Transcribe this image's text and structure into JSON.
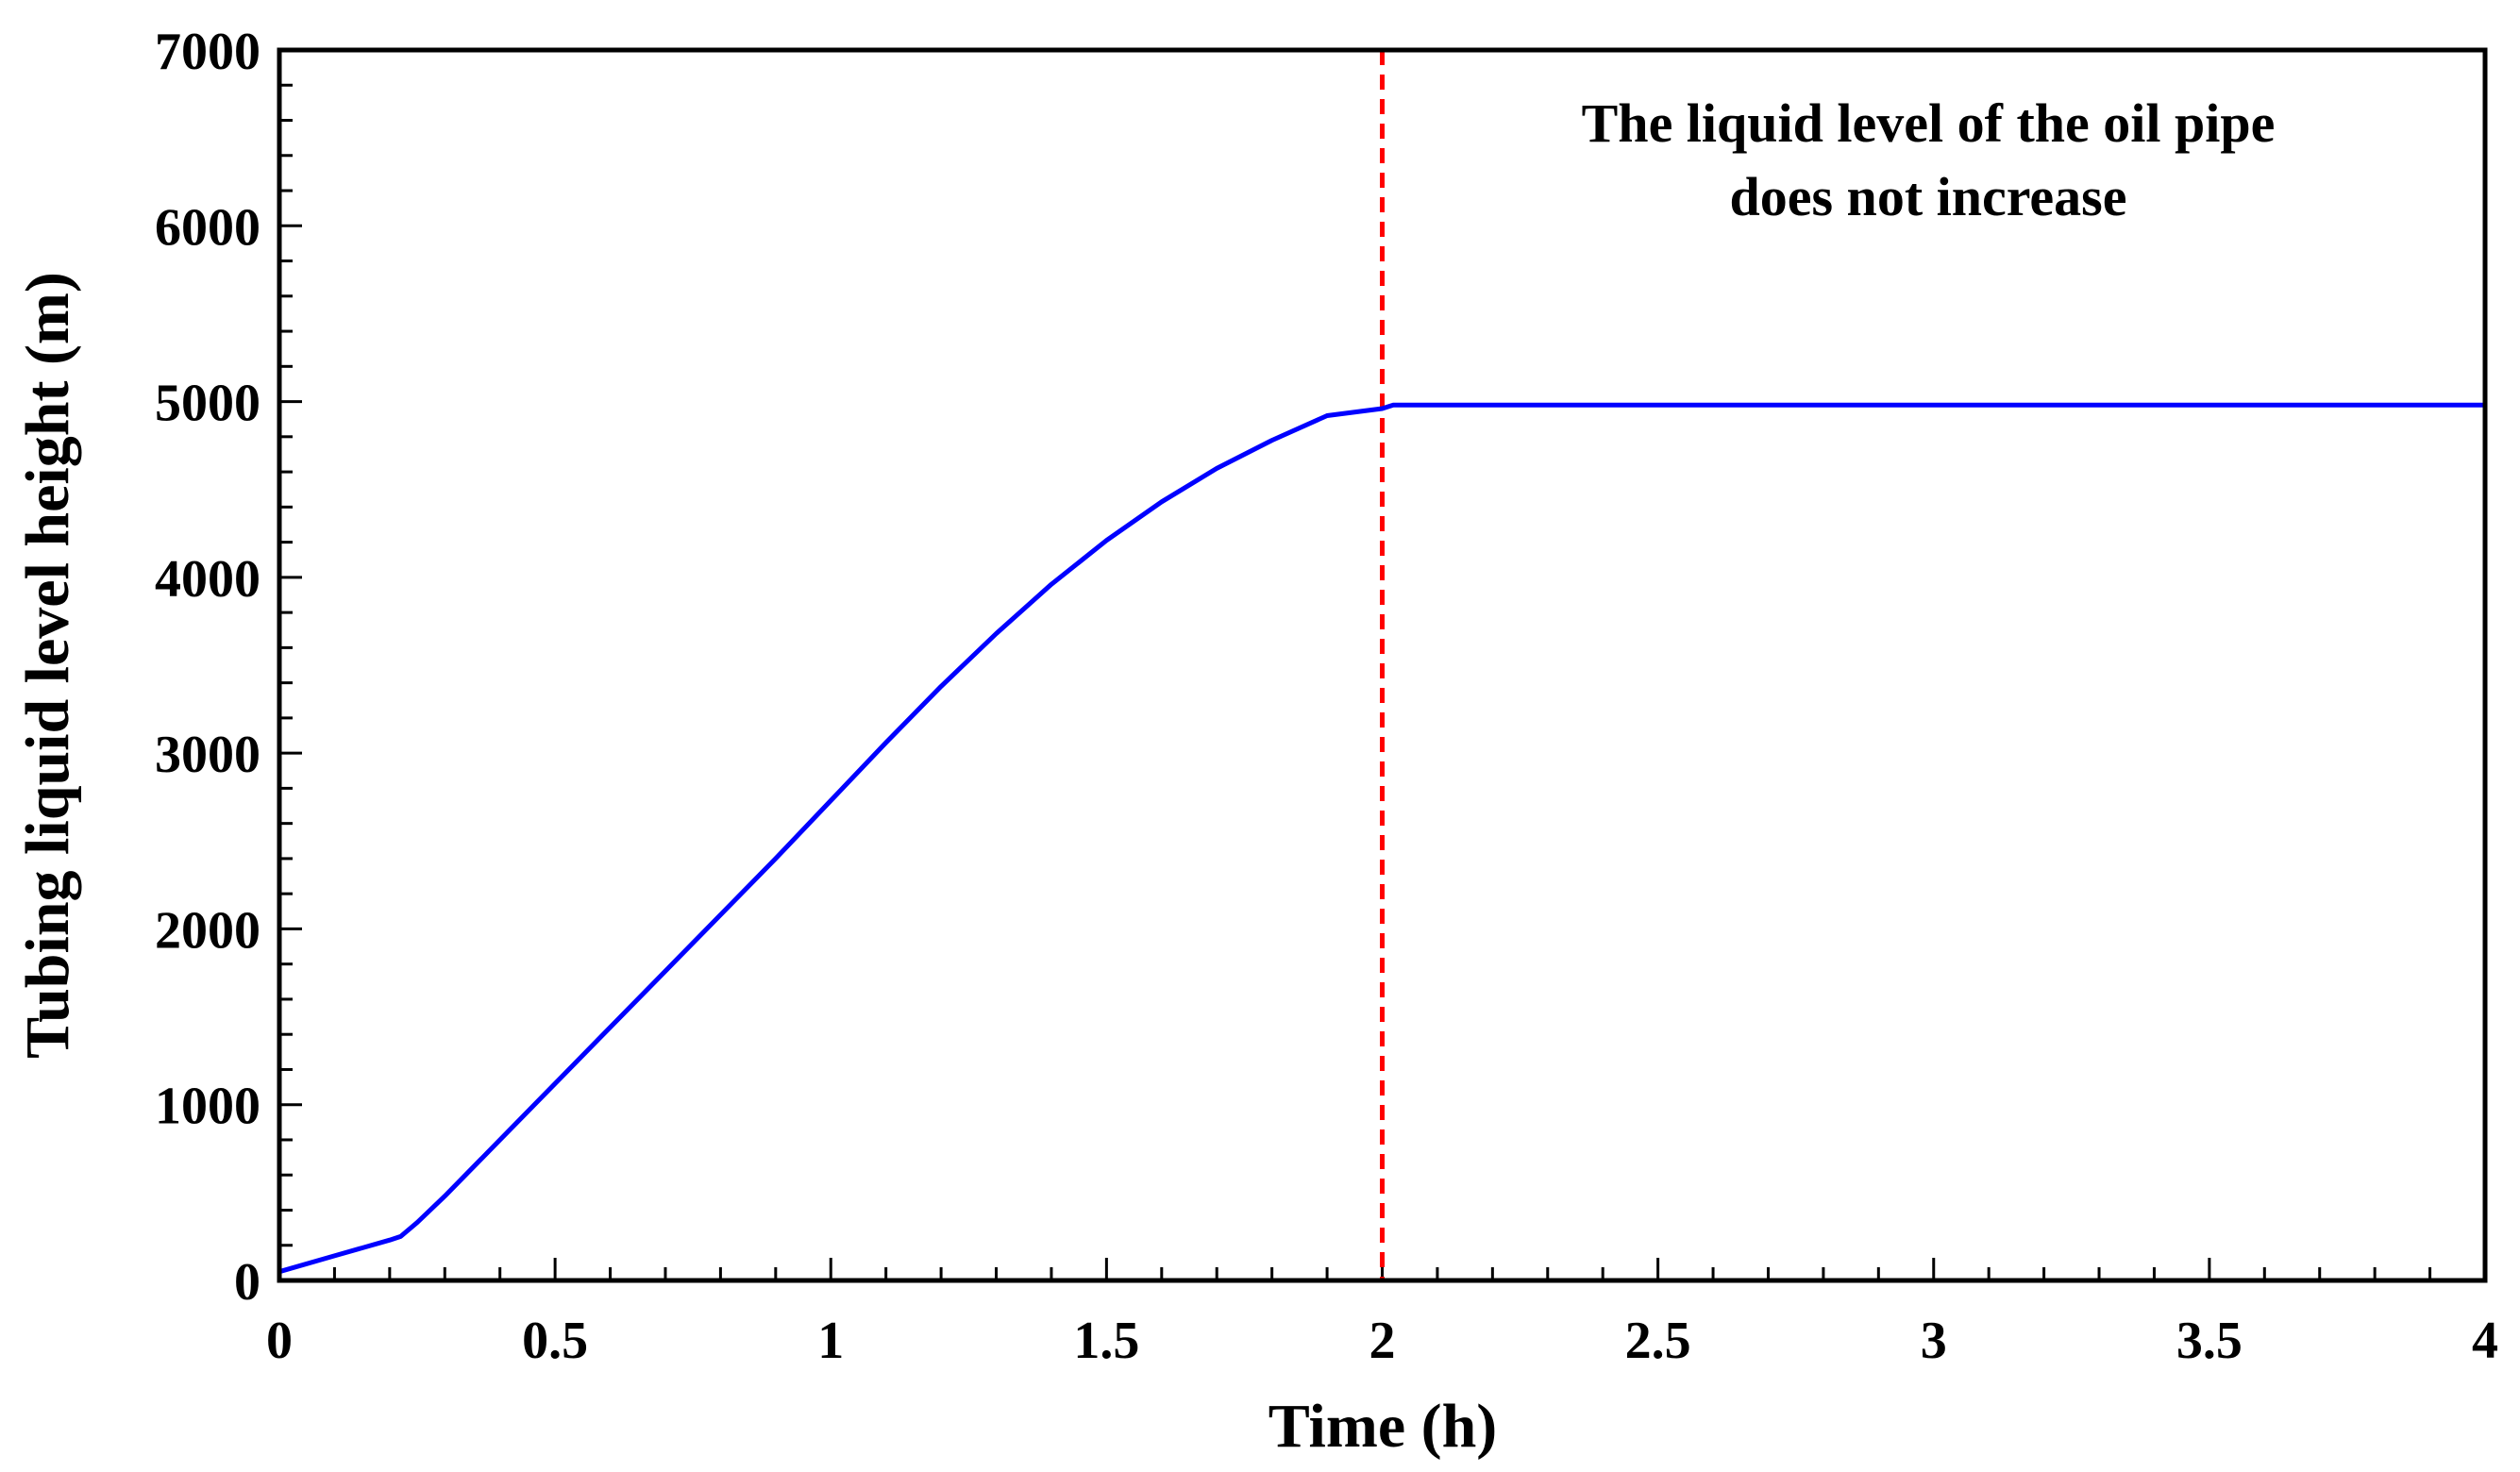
{
  "chart_data": {
    "type": "line",
    "title": "",
    "xlabel": "Time (h)",
    "ylabel": "Tubing liquid level height (m)",
    "xlim": [
      0,
      4
    ],
    "ylim": [
      0,
      7000
    ],
    "x_ticks": [
      "0",
      "0.5",
      "1",
      "1.5",
      "2",
      "2.5",
      "3",
      "3.5",
      "4"
    ],
    "y_ticks": [
      "0",
      "1000",
      "2000",
      "3000",
      "4000",
      "5000",
      "6000",
      "7000"
    ],
    "grid": false,
    "series": [
      {
        "name": "Tubing liquid level",
        "color": "#0000ff",
        "x": [
          0,
          0.1,
          0.2,
          0.22,
          0.25,
          0.3,
          0.4,
          0.5,
          0.6,
          0.7,
          0.8,
          0.9,
          1.0,
          1.1,
          1.2,
          1.3,
          1.4,
          1.5,
          1.6,
          1.7,
          1.8,
          1.9,
          2.0,
          2.02,
          2.5,
          3.0,
          3.5,
          4.0
        ],
        "y": [
          50,
          140,
          230,
          250,
          330,
          480,
          800,
          1120,
          1440,
          1760,
          2080,
          2400,
          2730,
          3060,
          3380,
          3680,
          3960,
          4210,
          4430,
          4620,
          4780,
          4920,
          4960,
          4980,
          4980,
          4980,
          4980,
          4980
        ]
      }
    ],
    "reference_line": {
      "orientation": "vertical",
      "x": 2,
      "style": "dashed",
      "color": "#ff0000"
    },
    "annotation": {
      "lines": [
        "The liquid level of the oil pipe",
        "does not increase"
      ],
      "color": "#ff0000"
    }
  }
}
